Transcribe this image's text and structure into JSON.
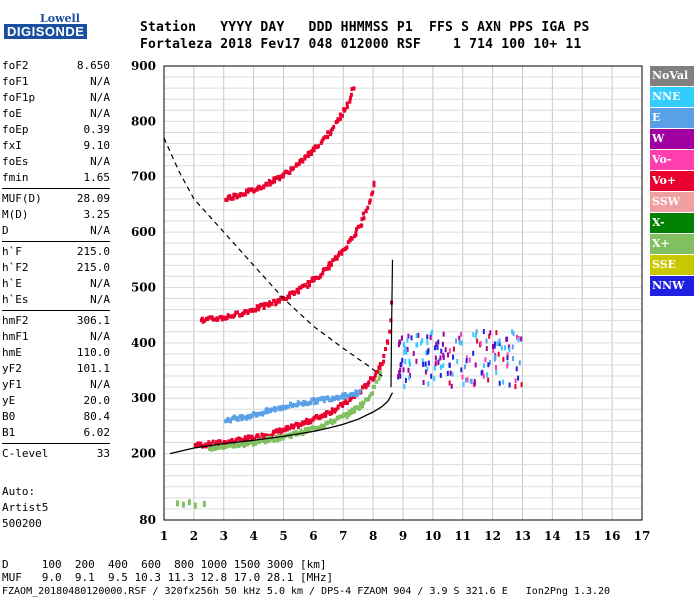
{
  "logo": {
    "line1": "Lowell",
    "line2": "DIGISONDE"
  },
  "header": {
    "labels": "Station   YYYY DAY   DDD HHMMSS P1  FFS S AXN PPS IGA PS",
    "values": "Fortaleza 2018 Fev17 048 012000 RSF    1 714 100 10+ 11"
  },
  "params": [
    [
      {
        "k": "foF2",
        "v": "8.650"
      },
      {
        "k": "foF1",
        "v": "N/A"
      },
      {
        "k": "foF1p",
        "v": "N/A"
      },
      {
        "k": "foE",
        "v": "N/A"
      },
      {
        "k": "foEp",
        "v": "0.39"
      },
      {
        "k": "fxI",
        "v": "9.10"
      },
      {
        "k": "foEs",
        "v": "N/A"
      },
      {
        "k": "fmin",
        "v": "1.65"
      }
    ],
    [
      {
        "k": "MUF(D)",
        "v": "28.09"
      },
      {
        "k": "M(D)",
        "v": "3.25"
      },
      {
        "k": "D",
        "v": "N/A"
      }
    ],
    [
      {
        "k": "h`F",
        "v": "215.0"
      },
      {
        "k": "h`F2",
        "v": "215.0"
      },
      {
        "k": "h`E",
        "v": "N/A"
      },
      {
        "k": "h`Es",
        "v": "N/A"
      }
    ],
    [
      {
        "k": "hmF2",
        "v": "306.1"
      },
      {
        "k": "hmF1",
        "v": "N/A"
      },
      {
        "k": "hmE",
        "v": "110.0"
      },
      {
        "k": "yF2",
        "v": "101.1"
      },
      {
        "k": "yF1",
        "v": "N/A"
      },
      {
        "k": "yE",
        "v": "20.0"
      },
      {
        "k": "B0",
        "v": "80.4"
      },
      {
        "k": "B1",
        "v": "6.02"
      }
    ],
    [
      {
        "k": "C-level",
        "v": "33"
      }
    ]
  ],
  "auto": {
    "line1": "Auto:",
    "line2": "Artist5",
    "line3": "500200"
  },
  "legend": [
    {
      "label": "NoVal",
      "color": "#808080"
    },
    {
      "label": "NNE",
      "color": "#33ccff"
    },
    {
      "label": "E",
      "color": "#5aa0e6"
    },
    {
      "label": "W",
      "color": "#a000a0"
    },
    {
      "label": "Vo-",
      "color": "#ff3fb0"
    },
    {
      "label": "Vo+",
      "color": "#e8002e"
    },
    {
      "label": "SSW",
      "color": "#f0a0a0"
    },
    {
      "label": "X-",
      "color": "#008000"
    },
    {
      "label": "X+",
      "color": "#80c060"
    },
    {
      "label": "SSE",
      "color": "#c8c800"
    },
    {
      "label": "NNW",
      "color": "#2020e0"
    }
  ],
  "chart_data": {
    "type": "scatter",
    "title": "",
    "xlabel": "",
    "ylabel": "",
    "xlim": [
      1,
      17
    ],
    "ylim": [
      80,
      900
    ],
    "x_ticks": [
      1,
      2,
      3,
      4,
      5,
      6,
      7,
      8,
      9,
      10,
      11,
      12,
      13,
      14,
      15,
      16,
      17
    ],
    "y_ticks": [
      80,
      200,
      300,
      400,
      500,
      600,
      700,
      800,
      900
    ],
    "grid": true,
    "traces": [
      {
        "name": "F2 O-trace",
        "color": "#e8002e",
        "x": [
          2.0,
          2.5,
          3.0,
          3.5,
          4.0,
          4.5,
          5.0,
          5.5,
          6.0,
          6.5,
          7.0,
          7.5,
          8.0,
          8.3,
          8.5,
          8.6
        ],
        "y": [
          215,
          217,
          220,
          224,
          229,
          235,
          243,
          252,
          263,
          275,
          290,
          310,
          340,
          370,
          420,
          500
        ]
      },
      {
        "name": "F2 X-trace",
        "color": "#80c060",
        "x": [
          2.5,
          3.0,
          3.5,
          4.0,
          4.5,
          5.0,
          5.5,
          6.0,
          6.5,
          7.0,
          7.5,
          7.8,
          8.0,
          8.2
        ],
        "y": [
          210,
          213,
          216,
          220,
          225,
          231,
          238,
          246,
          256,
          268,
          285,
          300,
          320,
          350
        ]
      },
      {
        "name": "2F2 trace",
        "color": "#e8002e",
        "x": [
          2.2,
          3.0,
          3.5,
          4.0,
          4.5,
          5.0,
          5.5,
          6.0,
          6.5,
          7.0,
          7.5,
          7.8,
          8.0
        ],
        "y": [
          440,
          446,
          453,
          461,
          470,
          481,
          496,
          515,
          540,
          570,
          610,
          650,
          690
        ]
      },
      {
        "name": "3F2 trace",
        "color": "#e8002e",
        "x": [
          3.0,
          3.5,
          4.0,
          4.5,
          5.0,
          5.5,
          6.0,
          6.5,
          7.0,
          7.3
        ],
        "y": [
          660,
          668,
          677,
          690,
          705,
          725,
          750,
          780,
          820,
          860
        ]
      },
      {
        "name": "Es E-echoes",
        "color": "#5aa0e6",
        "x": [
          3.0,
          4.0,
          5.0,
          6.0,
          7.0,
          7.5
        ],
        "y": [
          260,
          270,
          285,
          295,
          305,
          310
        ]
      }
    ],
    "spread": [
      {
        "x_from": 8.8,
        "x_to": 13.0,
        "y_from": 320,
        "y_to": 420
      }
    ],
    "profile_curve": {
      "x": [
        1.2,
        2.0,
        3.0,
        4.0,
        5.0,
        6.0,
        6.5,
        7.0,
        7.5,
        8.0,
        8.3,
        8.5,
        8.6,
        8.65
      ],
      "y": [
        200,
        210,
        218,
        224,
        231,
        240,
        246,
        253,
        262,
        275,
        285,
        295,
        305,
        310
      ]
    },
    "dashed_curve": {
      "x": [
        1.0,
        1.5,
        2.0,
        3.0,
        4.0,
        5.0,
        6.0,
        7.0,
        7.8,
        8.3
      ],
      "y": [
        770,
        710,
        660,
        600,
        540,
        480,
        430,
        390,
        360,
        340
      ]
    },
    "near_vertical": {
      "x": [
        8.6,
        8.62,
        8.65
      ],
      "y": [
        320,
        430,
        550
      ]
    },
    "low_echoes": {
      "x": [
        1.4,
        1.6,
        1.8,
        2.0,
        2.3
      ],
      "y": [
        110,
        108,
        112,
        106,
        109
      ]
    }
  },
  "footer": {
    "d_line": "D     100  200  400  600  800 1000 1500 3000 [km]",
    "muf_line": "MUF   9.0  9.1  9.5 10.3 11.3 12.8 17.0 28.1 [MHz]",
    "file_line": "FZAOM_20180480120000.RSF / 320fx256h 50 kHz 5.0 km / DPS-4 FZAOM 904 / 3.9 S 321.6 E   Ion2Png 1.3.20"
  }
}
